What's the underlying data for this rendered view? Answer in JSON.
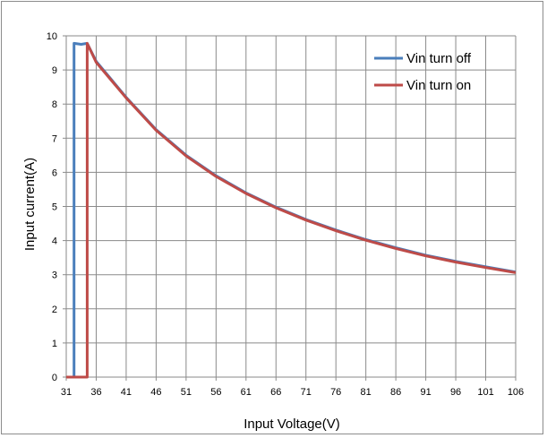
{
  "chart_data": {
    "type": "line",
    "xlabel": "Input Voltage(V)",
    "ylabel": "Input current(A)",
    "xlim": [
      31,
      106
    ],
    "ylim": [
      0,
      10
    ],
    "x_ticks": [
      "31",
      "36",
      "41",
      "46",
      "51",
      "56",
      "61",
      "66",
      "71",
      "76",
      "81",
      "86",
      "91",
      "96",
      "101",
      "106"
    ],
    "y_ticks": [
      "0",
      "1",
      "2",
      "3",
      "4",
      "5",
      "6",
      "7",
      "8",
      "9",
      "10"
    ],
    "grid": true,
    "legend_position": "top-right",
    "series": [
      {
        "name": "Vin turn off",
        "color": "#4a7ebb",
        "points": [
          [
            31,
            0
          ],
          [
            32.3,
            0
          ],
          [
            32.3,
            9.78
          ],
          [
            33.5,
            9.75
          ],
          [
            34.5,
            9.78
          ],
          [
            36,
            9.25
          ],
          [
            41,
            8.2
          ],
          [
            46,
            7.25
          ],
          [
            51,
            6.5
          ],
          [
            56,
            5.9
          ],
          [
            61,
            5.4
          ],
          [
            66,
            4.98
          ],
          [
            71,
            4.62
          ],
          [
            76,
            4.31
          ],
          [
            81,
            4.03
          ],
          [
            86,
            3.79
          ],
          [
            91,
            3.57
          ],
          [
            96,
            3.39
          ],
          [
            101,
            3.23
          ],
          [
            106,
            3.08
          ]
        ]
      },
      {
        "name": "Vin turn on",
        "color": "#be4b48",
        "points": [
          [
            31,
            0
          ],
          [
            34.5,
            0
          ],
          [
            34.5,
            9.78
          ],
          [
            36,
            9.22
          ],
          [
            41,
            8.18
          ],
          [
            46,
            7.23
          ],
          [
            51,
            6.48
          ],
          [
            56,
            5.88
          ],
          [
            61,
            5.38
          ],
          [
            66,
            4.96
          ],
          [
            71,
            4.6
          ],
          [
            76,
            4.29
          ],
          [
            81,
            4.01
          ],
          [
            86,
            3.77
          ],
          [
            91,
            3.55
          ],
          [
            96,
            3.37
          ],
          [
            101,
            3.21
          ],
          [
            106,
            3.06
          ]
        ]
      }
    ]
  }
}
